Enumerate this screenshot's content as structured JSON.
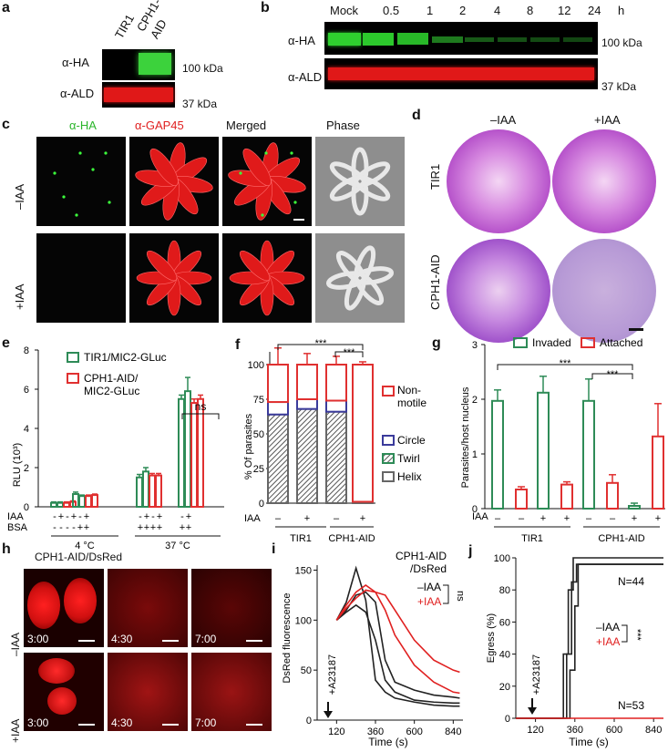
{
  "panels": {
    "a": {
      "label": "a",
      "lanes": [
        "TIR1",
        "CPH1-\nAID"
      ],
      "lane1": "TIR1",
      "lane2a": "CPH1-",
      "lane2b": "AID",
      "row1": "α-HA",
      "row2": "α-ALD",
      "mw1": "100 kDa",
      "mw2": "37 kDa"
    },
    "b": {
      "label": "b",
      "lanes": [
        "Mock",
        "0.5",
        "1",
        "2",
        "4",
        "8",
        "12",
        "24",
        "h"
      ],
      "row1": "α-HA",
      "row2": "α-ALD",
      "mw1": "100 kDa",
      "mw2": "37 kDa"
    },
    "c": {
      "label": "c",
      "cols": [
        "α-HA",
        "α-GAP45",
        "Merged",
        "Phase"
      ],
      "rows": [
        "–IAA",
        "+IAA"
      ]
    },
    "d": {
      "label": "d",
      "cols": [
        "–IAA",
        "+IAA"
      ],
      "rows": [
        "TIR1",
        "CPH1-AID"
      ]
    },
    "e": {
      "label": "e"
    },
    "f": {
      "label": "f"
    },
    "g": {
      "label": "g"
    },
    "h": {
      "label": "h",
      "title": "CPH1-AID/DsRed",
      "rows": [
        "–IAA",
        "+IAA"
      ],
      "times": [
        "3:00",
        "4:30",
        "7:00"
      ]
    },
    "i": {
      "label": "i"
    },
    "j": {
      "label": "j"
    }
  },
  "chart_data": [
    {
      "id": "e",
      "type": "bar",
      "ylabel": "RLU (10³)",
      "ylim": [
        0,
        8
      ],
      "yticks": [
        "0",
        "2",
        "4",
        "6",
        "8"
      ],
      "legend": [
        {
          "name": "TIR1/MIC2-GLuc",
          "color": "#2e8b57"
        },
        {
          "name": "CPH1-AID/\nMIC2-GLuc",
          "color": "#e03030"
        }
      ],
      "legend_lines": [
        "TIR1/MIC2-GLuc",
        "CPH1-AID/",
        "MIC2-GLuc"
      ],
      "row_labels": [
        "IAA",
        "BSA"
      ],
      "IAA": [
        "-",
        "+",
        "-",
        "+",
        "-",
        "+",
        "-",
        "+",
        "-",
        "+",
        "-",
        "+"
      ],
      "BSA": [
        "-",
        "-",
        "-",
        "-",
        "+",
        "+",
        "+",
        "+",
        "+",
        "+",
        "+",
        "+"
      ],
      "group_labels": [
        "4 °C",
        "37 °C"
      ],
      "annotation": "ns",
      "series": [
        {
          "name": "TIR1/MIC2-GLuc",
          "values": [
            0.2,
            0.2,
            0.65,
            0.55,
            1.5,
            1.8,
            5.5,
            5.9
          ]
        },
        {
          "name": "CPH1-AID/MIC2-GLuc",
          "values": [
            0.2,
            0.25,
            0.55,
            0.6,
            1.6,
            1.6,
            5.3,
            5.5
          ]
        }
      ],
      "errors": [
        [
          0.05,
          0.05,
          0.1,
          0.05,
          0.15,
          0.2,
          0.2,
          0.7
        ],
        [
          0.05,
          0.05,
          0.05,
          0.05,
          0.1,
          0.1,
          0.2,
          0.2
        ]
      ]
    },
    {
      "id": "f",
      "type": "bar",
      "ylabel": "% Of parasites",
      "ylim": [
        0,
        100
      ],
      "yticks": [
        "0",
        "25",
        "50",
        "75",
        "100"
      ],
      "categories_iaa": [
        "–",
        "+",
        "–",
        "+"
      ],
      "row_label": "IAA",
      "group_labels": [
        "TIR1",
        "CPH1-AID"
      ],
      "legend": [
        "Non-\nmotile",
        "Circle",
        "Twirl",
        "Helix"
      ],
      "legend_nonmotile": [
        "Non-",
        "motile"
      ],
      "legend_names": [
        "Circle",
        "Twirl",
        "Helix"
      ],
      "annotation": "***",
      "series": [
        {
          "name": "Helix",
          "values": [
            64,
            68,
            66,
            1
          ]
        },
        {
          "name": "Twirl",
          "values": [
            0,
            0,
            0,
            0
          ]
        },
        {
          "name": "Circle",
          "values": [
            9,
            7,
            8,
            0
          ]
        },
        {
          "name": "Non-motile",
          "values": [
            27,
            25,
            26,
            99
          ]
        }
      ],
      "errors": [
        [
          6,
          5,
          5,
          1
        ],
        [
          0,
          0,
          0,
          0
        ],
        [
          5,
          4,
          5,
          0
        ],
        [
          12,
          8,
          6,
          2
        ]
      ]
    },
    {
      "id": "g",
      "type": "bar",
      "ylabel": "Parasites/host nucleus",
      "ylim": [
        0,
        3
      ],
      "yticks": [
        "0",
        "1",
        "2",
        "3"
      ],
      "legend": [
        {
          "name": "Invaded",
          "color": "#2e8b57"
        },
        {
          "name": "Attached",
          "color": "#e03030"
        }
      ],
      "categories_iaa": [
        "–",
        "–",
        "+",
        "+",
        "–",
        "–",
        "+",
        "+"
      ],
      "row_label": "IAA",
      "group_labels": [
        "TIR1",
        "CPH1-AID"
      ],
      "annotation": "***",
      "series": [
        {
          "name": "Invaded",
          "values": [
            1.97,
            2.12,
            1.97,
            0.05
          ]
        },
        {
          "name": "Attached",
          "values": [
            0.35,
            0.44,
            0.47,
            1.32
          ]
        }
      ],
      "errors": [
        [
          0.2,
          0.3,
          0.4,
          0.05
        ],
        [
          0.05,
          0.05,
          0.15,
          0.6
        ]
      ]
    },
    {
      "id": "i",
      "type": "line",
      "title": "CPH1-AID\n/DsRed",
      "title_lines": [
        "CPH1-AID",
        "/DsRed"
      ],
      "ylabel": "DsRed fluorescence",
      "xlabel": "Time (s)",
      "xlim": [
        0,
        900
      ],
      "ylim": [
        0,
        155
      ],
      "xticks": [
        "120",
        "360",
        "600",
        "840"
      ],
      "yticks": [
        "0",
        "50",
        "100",
        "150"
      ],
      "legend": [
        "–IAA",
        "+IAA"
      ],
      "annotation": "ns",
      "arrow": "+A23187",
      "series": [
        {
          "name": "–IAA",
          "color": "#222",
          "x": [
            120,
            180,
            240,
            300,
            360,
            420,
            480,
            600,
            720,
            840,
            880
          ],
          "y": [
            100,
            118,
            152,
            120,
            40,
            28,
            22,
            18,
            15,
            14,
            14
          ]
        },
        {
          "name": "–IAA",
          "color": "#222",
          "x": [
            120,
            180,
            240,
            300,
            360,
            420,
            480,
            600,
            720,
            840,
            880
          ],
          "y": [
            100,
            108,
            115,
            108,
            80,
            40,
            28,
            20,
            18,
            17,
            17
          ]
        },
        {
          "name": "–IAA",
          "color": "#222",
          "x": [
            120,
            180,
            240,
            300,
            360,
            420,
            480,
            600,
            720,
            840,
            880
          ],
          "y": [
            100,
            110,
            125,
            128,
            118,
            60,
            38,
            30,
            25,
            23,
            22
          ]
        },
        {
          "name": "+IAA",
          "color": "#e02020",
          "x": [
            120,
            180,
            240,
            300,
            360,
            420,
            480,
            600,
            720,
            840,
            880
          ],
          "y": [
            100,
            115,
            128,
            135,
            128,
            110,
            85,
            55,
            38,
            28,
            27
          ]
        },
        {
          "name": "+IAA",
          "color": "#e02020",
          "x": [
            120,
            180,
            240,
            300,
            360,
            420,
            480,
            600,
            720,
            840,
            880
          ],
          "y": [
            100,
            112,
            122,
            130,
            128,
            125,
            110,
            80,
            60,
            50,
            48
          ]
        }
      ]
    },
    {
      "id": "j",
      "type": "line",
      "ylabel": "Egress (%)",
      "xlabel": "Time (s)",
      "xlim": [
        0,
        900
      ],
      "ylim": [
        0,
        100
      ],
      "xticks": [
        "120",
        "360",
        "600",
        "840"
      ],
      "yticks": [
        "0",
        "20",
        "40",
        "60",
        "80",
        "100"
      ],
      "legend": [
        "–IAA",
        "+IAA"
      ],
      "annotation": "***",
      "arrow": "+A23187",
      "n_labels": [
        "N=44",
        "N=53"
      ],
      "series": [
        {
          "name": "–IAA",
          "color": "#222",
          "x": [
            0,
            260,
            290,
            320,
            350,
            900
          ],
          "y": [
            0,
            0,
            40,
            80,
            100,
            100
          ]
        },
        {
          "name": "–IAA",
          "color": "#222",
          "x": [
            0,
            280,
            310,
            340,
            370,
            900
          ],
          "y": [
            0,
            0,
            40,
            85,
            96,
            96
          ]
        },
        {
          "name": "–IAA",
          "color": "#222",
          "x": [
            0,
            300,
            330,
            360,
            380,
            900
          ],
          "y": [
            0,
            0,
            30,
            70,
            96,
            96
          ]
        },
        {
          "name": "+IAA",
          "color": "#e02020",
          "x": [
            0,
            900
          ],
          "y": [
            0,
            0
          ]
        }
      ]
    }
  ]
}
